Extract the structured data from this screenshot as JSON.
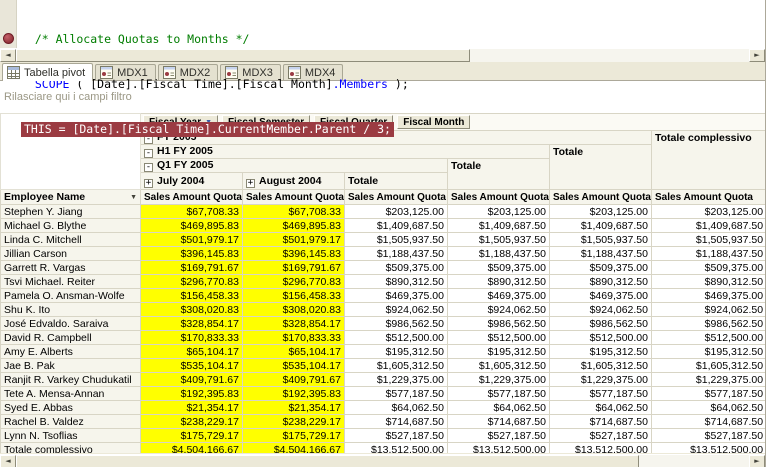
{
  "editor": {
    "comment_line": "  /* Allocate Quotas to Months */",
    "scope_line": {
      "indent": "  ",
      "kw": "SCOPE",
      "mid": " ( [Date].[Fiscal Time].[Fiscal Month]",
      "member_kw": ".Members",
      "tail": " );"
    },
    "breakpoint_line": "THIS = [Date].[Fiscal Time].CurrentMember.Parent / 3;"
  },
  "tabs": [
    {
      "label": "Tabella pivot",
      "active": true
    },
    {
      "label": "MDX1",
      "active": false
    },
    {
      "label": "MDX2",
      "active": false
    },
    {
      "label": "MDX3",
      "active": false
    },
    {
      "label": "MDX4",
      "active": false
    }
  ],
  "icons": {
    "dropdown": "▼",
    "collapse": "-",
    "expand": "+",
    "scroll_left": "◄",
    "scroll_right": "►"
  },
  "colors": {
    "breakpoint_bg": "#9b3b42",
    "yellow": "#ffff00",
    "comment": "#007d00",
    "keyword": "#0000ff"
  },
  "pivot": {
    "filter_hint": "Rilasciare qui i campi filtro",
    "column_fields": [
      {
        "label": "Fiscal Year",
        "has_dropdown": true
      },
      {
        "label": "Fiscal Semester",
        "has_dropdown": false
      },
      {
        "label": "Fiscal Quarter",
        "has_dropdown": false
      },
      {
        "label": "Fiscal Month",
        "has_dropdown": false
      }
    ],
    "row_field": "Employee Name",
    "hierarchy": {
      "year": "FY 2005",
      "semester": "H1 FY 2005",
      "quarter": "Q1 FY 2005",
      "months": [
        "July 2004",
        "August 2004"
      ]
    },
    "total_label": "Totale",
    "grand_total_label": "Totale complessivo",
    "measure_label": "Sales Amount Quota",
    "rows": [
      {
        "name": "Stephen Y. Jiang",
        "values": [
          "$67,708.33",
          "$67,708.33",
          "$203,125.00",
          "$203,125.00",
          "$203,125.00",
          "$203,125.00"
        ]
      },
      {
        "name": "Michael G. Blythe",
        "values": [
          "$469,895.83",
          "$469,895.83",
          "$1,409,687.50",
          "$1,409,687.50",
          "$1,409,687.50",
          "$1,409,687.50"
        ]
      },
      {
        "name": "Linda C. Mitchell",
        "values": [
          "$501,979.17",
          "$501,979.17",
          "$1,505,937.50",
          "$1,505,937.50",
          "$1,505,937.50",
          "$1,505,937.50"
        ]
      },
      {
        "name": "Jillian Carson",
        "values": [
          "$396,145.83",
          "$396,145.83",
          "$1,188,437.50",
          "$1,188,437.50",
          "$1,188,437.50",
          "$1,188,437.50"
        ]
      },
      {
        "name": "Garrett R. Vargas",
        "values": [
          "$169,791.67",
          "$169,791.67",
          "$509,375.00",
          "$509,375.00",
          "$509,375.00",
          "$509,375.00"
        ]
      },
      {
        "name": "Tsvi Michael. Reiter",
        "values": [
          "$296,770.83",
          "$296,770.83",
          "$890,312.50",
          "$890,312.50",
          "$890,312.50",
          "$890,312.50"
        ]
      },
      {
        "name": "Pamela O. Ansman-Wolfe",
        "values": [
          "$156,458.33",
          "$156,458.33",
          "$469,375.00",
          "$469,375.00",
          "$469,375.00",
          "$469,375.00"
        ]
      },
      {
        "name": "Shu K. Ito",
        "values": [
          "$308,020.83",
          "$308,020.83",
          "$924,062.50",
          "$924,062.50",
          "$924,062.50",
          "$924,062.50"
        ]
      },
      {
        "name": "José Edvaldo. Saraiva",
        "values": [
          "$328,854.17",
          "$328,854.17",
          "$986,562.50",
          "$986,562.50",
          "$986,562.50",
          "$986,562.50"
        ]
      },
      {
        "name": "David R. Campbell",
        "values": [
          "$170,833.33",
          "$170,833.33",
          "$512,500.00",
          "$512,500.00",
          "$512,500.00",
          "$512,500.00"
        ]
      },
      {
        "name": "Amy E. Alberts",
        "values": [
          "$65,104.17",
          "$65,104.17",
          "$195,312.50",
          "$195,312.50",
          "$195,312.50",
          "$195,312.50"
        ]
      },
      {
        "name": "Jae B. Pak",
        "values": [
          "$535,104.17",
          "$535,104.17",
          "$1,605,312.50",
          "$1,605,312.50",
          "$1,605,312.50",
          "$1,605,312.50"
        ]
      },
      {
        "name": "Ranjit R. Varkey Chudukatil",
        "values": [
          "$409,791.67",
          "$409,791.67",
          "$1,229,375.00",
          "$1,229,375.00",
          "$1,229,375.00",
          "$1,229,375.00"
        ]
      },
      {
        "name": "Tete A. Mensa-Annan",
        "values": [
          "$192,395.83",
          "$192,395.83",
          "$577,187.50",
          "$577,187.50",
          "$577,187.50",
          "$577,187.50"
        ]
      },
      {
        "name": "Syed E. Abbas",
        "values": [
          "$21,354.17",
          "$21,354.17",
          "$64,062.50",
          "$64,062.50",
          "$64,062.50",
          "$64,062.50"
        ]
      },
      {
        "name": "Rachel B. Valdez",
        "values": [
          "$238,229.17",
          "$238,229.17",
          "$714,687.50",
          "$714,687.50",
          "$714,687.50",
          "$714,687.50"
        ]
      },
      {
        "name": "Lynn N. Tsoflias",
        "values": [
          "$175,729.17",
          "$175,729.17",
          "$527,187.50",
          "$527,187.50",
          "$527,187.50",
          "$527,187.50"
        ]
      }
    ],
    "grand_total_row": {
      "name": "Totale complessivo",
      "values": [
        "$4,504,166.67",
        "$4,504,166.67",
        "$13,512,500.00",
        "$13,512,500.00",
        "$13,512,500.00",
        "$13,512,500.00"
      ]
    }
  }
}
